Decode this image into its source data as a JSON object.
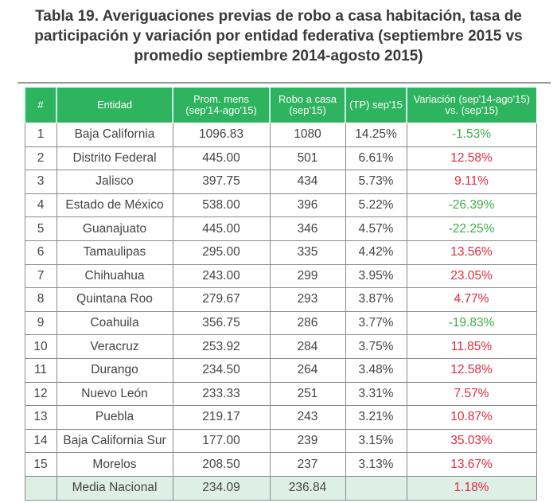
{
  "title": [
    "Tabla 19. Averiguaciones previas de robo a casa habitación, tasa de",
    "participación y variación por entidad federativa (septiembre 2015 vs",
    "promedio septiembre 2014-agosto 2015)"
  ],
  "headers": [
    "#",
    "Entidad",
    "Prom. mens\n(sep'14-ago'15)",
    "Robo a casa\n(sep'15)",
    "(TP) sep'15",
    "Variación (sep'14-ago'15)\nvs. (sep'15)"
  ],
  "rows": [
    [
      "1",
      "Baja California",
      "1096.83",
      "1080",
      "14.25%",
      "-1.53%"
    ],
    [
      "2",
      "Distrito Federal",
      "445.00",
      "501",
      "6.61%",
      "12.58%"
    ],
    [
      "3",
      "Jalisco",
      "397.75",
      "434",
      "5.73%",
      "9.11%"
    ],
    [
      "4",
      "Estado de México",
      "538.00",
      "396",
      "5.22%",
      "-26.39%"
    ],
    [
      "5",
      "Guanajuato",
      "445.00",
      "346",
      "4.57%",
      "-22.25%"
    ],
    [
      "6",
      "Tamaulipas",
      "295.00",
      "335",
      "4.42%",
      "13.56%"
    ],
    [
      "7",
      "Chihuahua",
      "243.00",
      "299",
      "3.95%",
      "23.05%"
    ],
    [
      "8",
      "Quintana Roo",
      "279.67",
      "293",
      "3.87%",
      "4.77%"
    ],
    [
      "9",
      "Coahuila",
      "356.75",
      "286",
      "3.77%",
      "-19.83%"
    ],
    [
      "10",
      "Veracruz",
      "253.92",
      "284",
      "3.75%",
      "11.85%"
    ],
    [
      "11",
      "Durango",
      "234.50",
      "264",
      "3.48%",
      "12.58%"
    ],
    [
      "12",
      "Nuevo León",
      "233.33",
      "251",
      "3.31%",
      "7.57%"
    ],
    [
      "13",
      "Puebla",
      "219.17",
      "243",
      "3.21%",
      "10.87%"
    ],
    [
      "14",
      "Baja California Sur",
      "177.00",
      "239",
      "3.15%",
      "35.03%"
    ],
    [
      "15",
      "Morelos",
      "208.50",
      "237",
      "3.13%",
      "13.67%"
    ]
  ],
  "media": [
    "",
    "Media Nacional",
    "234.09",
    "236.84",
    "",
    "1.18%"
  ],
  "colors": {
    "header": "#2eb35e",
    "negative": "#3fae4a",
    "positive": "#e02a3f",
    "media": "#deefe6"
  }
}
